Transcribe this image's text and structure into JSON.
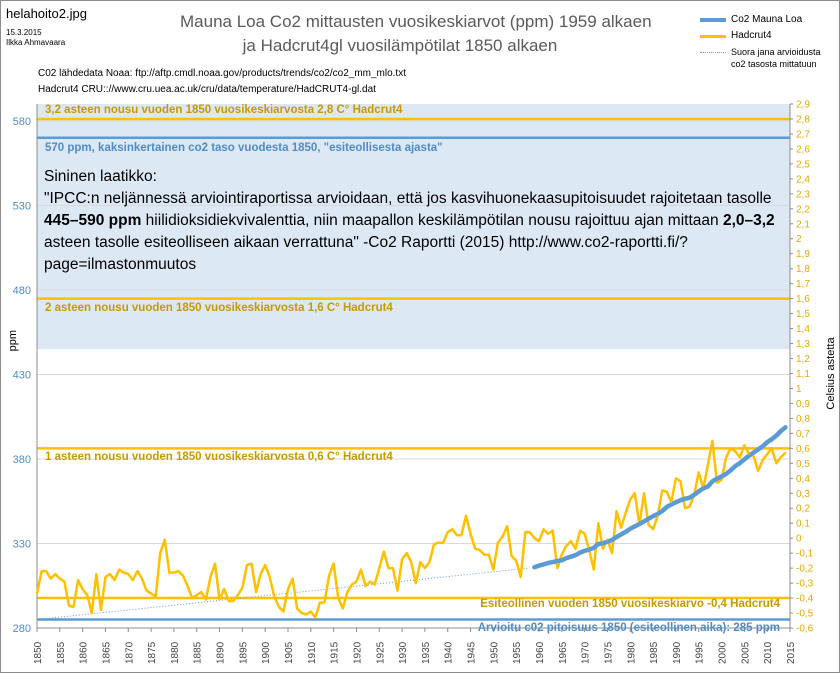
{
  "header": {
    "filename": "helahoito2.jpg",
    "date": "15.3.2015",
    "author": "Ilkka Ahmavaara",
    "title_line1": "Mauna Loa Co2 mittausten vuosikeskiarvot (ppm) 1959 alkaen",
    "title_line2": "ja Hadcrut4gl vuosilämpötilat 1850 alkaen",
    "source_co2": "C02 lähdedata Noaa: ftp://aftp.cmdl.noaa.gov/products/trends/co2/co2_mm_mlo.txt",
    "source_hadcrut": "Hadcrut4 CRU:://www.cru.uea.ac.uk/cru/data/temperature/HadCRUT4-gl.dat"
  },
  "legend": {
    "co2": "Co2 Mauna Loa",
    "hadcrut": "Hadcrut4",
    "trend": "Suora jana arvioidusta co2 tasosta mittatuun"
  },
  "textbox": {
    "heading": "Sininen laatikko:",
    "quote_part1": "\"IPCC:n neljännessä arviointiraportissa arvioidaan, että jos kasvihuonekaasupitoisuudet rajoitetaan tasolle ",
    "quote_bold1": "445–590 ppm",
    "quote_part2": " hiilidioksidiekvivalenttia, niin maapallon keskilämpötilan nousu rajoittuu ajan mittaan ",
    "quote_bold2": "2,0–3,2",
    "quote_part3": " asteen tasolle esiteolliseen aikaan verrattuna\" -Co2 Raportti (2015) http://www.co2-raportti.fi/?page=ilmastonmuutos"
  },
  "annotations": {
    "a32": "3,2 asteen nousu  vuoden 1850 vuosikeskiarvosta 2,8 C° Hadcrut4",
    "a570": "570 ppm, kaksinkertainen co2 taso vuodesta 1850,  \"esiteollisesta ajasta\"",
    "a2": "2 asteen nousu  vuoden 1850 vuosikeskiarvosta 1,6 C° Hadcrut4",
    "a1": "1 asteen nousu  vuoden 1850 vuosikeskiarvosta 0,6 C° Hadcrut4",
    "apre": "Esiteollinen vuoden 1850 vuosikeskiarvo -0,4 Hadcrut4",
    "a285": "Arvioitu c02 pitoisuus 1850  (esiteollinen aika): 285 ppm"
  },
  "colors": {
    "co2": "#5b9bd5",
    "hadcrut": "#ffc000",
    "band": "#dde8f5",
    "line_gold": "#ffc000",
    "line_blue": "#5b9bd5",
    "grid": "#d9d9d9",
    "annot_gold": "#c79a00",
    "annot_blue": "#4f8cc9"
  },
  "chart_data": {
    "type": "line",
    "ylabel_left": "ppm",
    "ylabel_right": "Celsius astetta",
    "ylim_left": [
      280,
      590
    ],
    "ylim_right": [
      -0.6,
      2.9
    ],
    "xlim": [
      1850,
      2015
    ],
    "grid": true,
    "legend_placement": "top-right",
    "x_ticks": [
      1850,
      1855,
      1860,
      1865,
      1870,
      1875,
      1880,
      1885,
      1890,
      1895,
      1900,
      1905,
      1910,
      1915,
      1920,
      1925,
      1930,
      1935,
      1940,
      1945,
      1950,
      1955,
      1960,
      1965,
      1970,
      1975,
      1980,
      1985,
      1990,
      1995,
      2000,
      2005,
      2010,
      2015
    ],
    "y_ticks_left": [
      280,
      330,
      380,
      430,
      480,
      530,
      580
    ],
    "y_ticks_right": [
      -0.6,
      -0.5,
      -0.4,
      -0.3,
      -0.2,
      -0.1,
      0,
      0.1,
      0.2,
      0.3,
      0.4,
      0.5,
      0.6,
      0.7,
      0.8,
      0.9,
      1,
      1.1,
      1.2,
      1.3,
      1.4,
      1.5,
      1.6,
      1.7,
      1.8,
      1.9,
      2,
      2.1,
      2.2,
      2.3,
      2.4,
      2.5,
      2.6,
      2.7,
      2.8,
      2.9
    ],
    "y_ticks_right_labels": [
      "-0,6",
      "-0,5",
      "-0,4",
      "-0,3",
      "-0,2",
      "-0,1",
      "0",
      "0,1",
      "0,2",
      "0,3",
      "0,4",
      "0,5",
      "0,6",
      "0,7",
      "0,8",
      "0,9",
      "1",
      "1,1",
      "1,2",
      "1,3",
      "1,4",
      "1,5",
      "1,6",
      "1,7",
      "1,8",
      "1,9",
      "2",
      "2,1",
      "2,2",
      "2,3",
      "2,4",
      "2,5",
      "2,6",
      "2,7",
      "2,8",
      "2,9"
    ],
    "band_ppm": [
      445,
      590
    ],
    "hlines": [
      {
        "axis": "right",
        "value": 2.8,
        "color": "gold",
        "label_key": "a32"
      },
      {
        "axis": "left",
        "value": 570,
        "color": "blue",
        "label_key": "a570"
      },
      {
        "axis": "right",
        "value": 1.6,
        "color": "gold",
        "label_key": "a2"
      },
      {
        "axis": "right",
        "value": 0.6,
        "color": "gold",
        "label_key": "a1"
      },
      {
        "axis": "right",
        "value": -0.4,
        "color": "gold",
        "label_key": "apre"
      },
      {
        "axis": "left",
        "value": 285,
        "color": "blue",
        "label_key": "a285"
      }
    ],
    "series": [
      {
        "name": "Co2 Mauna Loa",
        "axis": "left",
        "x": [
          1959,
          1960,
          1961,
          1962,
          1963,
          1964,
          1965,
          1966,
          1967,
          1968,
          1969,
          1970,
          1971,
          1972,
          1973,
          1974,
          1975,
          1976,
          1977,
          1978,
          1979,
          1980,
          1981,
          1982,
          1983,
          1984,
          1985,
          1986,
          1987,
          1988,
          1989,
          1990,
          1991,
          1992,
          1993,
          1994,
          1995,
          1996,
          1997,
          1998,
          1999,
          2000,
          2001,
          2002,
          2003,
          2004,
          2005,
          2006,
          2007,
          2008,
          2009,
          2010,
          2011,
          2012,
          2013,
          2014
        ],
        "y": [
          315.97,
          316.91,
          317.64,
          318.45,
          318.99,
          319.62,
          320.04,
          321.38,
          322.16,
          323.04,
          324.62,
          325.68,
          326.32,
          327.45,
          329.68,
          330.18,
          331.11,
          332.04,
          333.83,
          335.4,
          336.84,
          338.75,
          340.11,
          341.45,
          343.05,
          344.65,
          346.12,
          347.42,
          349.19,
          351.57,
          353.12,
          354.39,
          355.61,
          356.45,
          357.1,
          358.83,
          360.82,
          362.61,
          363.73,
          366.7,
          368.38,
          369.55,
          371.14,
          373.28,
          375.8,
          377.52,
          379.8,
          381.9,
          383.79,
          385.6,
          387.43,
          389.9,
          391.65,
          393.85,
          396.52,
          398.65
        ]
      },
      {
        "name": "Hadcrut4",
        "axis": "right",
        "x": [
          1850,
          1851,
          1852,
          1853,
          1854,
          1855,
          1856,
          1857,
          1858,
          1859,
          1860,
          1861,
          1862,
          1863,
          1864,
          1865,
          1866,
          1867,
          1868,
          1869,
          1870,
          1871,
          1872,
          1873,
          1874,
          1875,
          1876,
          1877,
          1878,
          1879,
          1880,
          1881,
          1882,
          1883,
          1884,
          1885,
          1886,
          1887,
          1888,
          1889,
          1890,
          1891,
          1892,
          1893,
          1894,
          1895,
          1896,
          1897,
          1898,
          1899,
          1900,
          1901,
          1902,
          1903,
          1904,
          1905,
          1906,
          1907,
          1908,
          1909,
          1910,
          1911,
          1912,
          1913,
          1914,
          1915,
          1916,
          1917,
          1918,
          1919,
          1920,
          1921,
          1922,
          1923,
          1924,
          1925,
          1926,
          1927,
          1928,
          1929,
          1930,
          1931,
          1932,
          1933,
          1934,
          1935,
          1936,
          1937,
          1938,
          1939,
          1940,
          1941,
          1942,
          1943,
          1944,
          1945,
          1946,
          1947,
          1948,
          1949,
          1950,
          1951,
          1952,
          1953,
          1954,
          1955,
          1956,
          1957,
          1958,
          1959,
          1960,
          1961,
          1962,
          1963,
          1964,
          1965,
          1966,
          1967,
          1968,
          1969,
          1970,
          1971,
          1972,
          1973,
          1974,
          1975,
          1976,
          1977,
          1978,
          1979,
          1980,
          1981,
          1982,
          1983,
          1984,
          1985,
          1986,
          1987,
          1988,
          1989,
          1990,
          1991,
          1992,
          1993,
          1994,
          1995,
          1996,
          1997,
          1998,
          1999,
          2000,
          2001,
          2002,
          2003,
          2004,
          2005,
          2006,
          2007,
          2008,
          2009,
          2010,
          2011,
          2012,
          2013,
          2014
        ],
        "y": [
          -0.37,
          -0.22,
          -0.22,
          -0.27,
          -0.24,
          -0.27,
          -0.29,
          -0.45,
          -0.46,
          -0.28,
          -0.34,
          -0.38,
          -0.5,
          -0.24,
          -0.48,
          -0.26,
          -0.24,
          -0.28,
          -0.21,
          -0.23,
          -0.24,
          -0.28,
          -0.22,
          -0.27,
          -0.35,
          -0.37,
          -0.39,
          -0.1,
          -0.01,
          -0.23,
          -0.23,
          -0.22,
          -0.25,
          -0.32,
          -0.4,
          -0.38,
          -0.36,
          -0.41,
          -0.26,
          -0.17,
          -0.41,
          -0.34,
          -0.42,
          -0.42,
          -0.38,
          -0.33,
          -0.18,
          -0.17,
          -0.36,
          -0.24,
          -0.18,
          -0.26,
          -0.39,
          -0.46,
          -0.49,
          -0.34,
          -0.27,
          -0.47,
          -0.5,
          -0.51,
          -0.49,
          -0.53,
          -0.43,
          -0.43,
          -0.25,
          -0.17,
          -0.4,
          -0.47,
          -0.36,
          -0.31,
          -0.29,
          -0.21,
          -0.32,
          -0.29,
          -0.31,
          -0.2,
          -0.09,
          -0.2,
          -0.2,
          -0.35,
          -0.14,
          -0.1,
          -0.16,
          -0.3,
          -0.16,
          -0.2,
          -0.16,
          -0.04,
          -0.03,
          -0.03,
          0.04,
          0.06,
          0.02,
          0.02,
          0.15,
          0.03,
          -0.07,
          -0.08,
          -0.11,
          -0.11,
          -0.21,
          -0.03,
          0.01,
          0.08,
          -0.12,
          -0.15,
          -0.26,
          0.04,
          0.04,
          0.0,
          -0.02,
          0.06,
          0.03,
          0.05,
          -0.2,
          -0.11,
          -0.05,
          -0.02,
          -0.07,
          0.05,
          0.03,
          -0.08,
          -0.21,
          0.1,
          -0.07,
          -0.01,
          -0.1,
          0.18,
          0.07,
          0.17,
          0.26,
          0.3,
          0.09,
          0.3,
          0.09,
          0.06,
          0.15,
          0.32,
          0.31,
          0.24,
          0.4,
          0.38,
          0.2,
          0.21,
          0.29,
          0.44,
          0.33,
          0.49,
          0.65,
          0.37,
          0.39,
          0.54,
          0.6,
          0.58,
          0.54,
          0.62,
          0.56,
          0.55,
          0.45,
          0.52,
          0.56,
          0.6,
          0.5,
          0.54,
          0.57
        ]
      },
      {
        "name": "Suora jana arvioidusta co2 tasosta mittatuun",
        "axis": "left",
        "x": [
          1850,
          1958
        ],
        "y": [
          285,
          315.5
        ]
      }
    ]
  }
}
